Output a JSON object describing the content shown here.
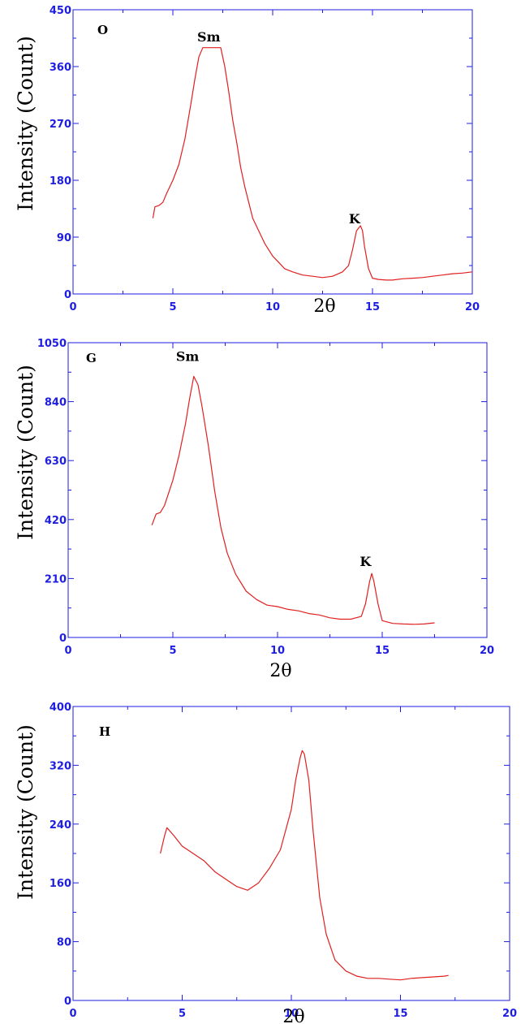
{
  "chart_data": [
    {
      "type": "line",
      "panel_label": "O",
      "xlabel": "2θ",
      "ylabel": "Intensity (Count)",
      "xlim": [
        0,
        20
      ],
      "ylim": [
        0,
        450
      ],
      "x_ticks": [
        "0",
        "5",
        "10",
        "15",
        "20"
      ],
      "y_ticks": [
        "0",
        "90",
        "180",
        "270",
        "360",
        "450"
      ],
      "colors": {
        "axis": "#1e1ee0",
        "series": "#e02020"
      },
      "series": [
        {
          "x": [
            4.0,
            4.1,
            4.3,
            4.5,
            4.7,
            5.0,
            5.3,
            5.6,
            5.9,
            6.1,
            6.3,
            6.5,
            7.0,
            7.4,
            7.6,
            7.8,
            8.0,
            8.2,
            8.4,
            8.6,
            8.8,
            9.0,
            9.3,
            9.6,
            10.0,
            10.3,
            10.6,
            11.0,
            11.5,
            12.0,
            12.5,
            13.0,
            13.5,
            13.8,
            14.0,
            14.2,
            14.4,
            14.5,
            14.6,
            14.8,
            15.0,
            15.3,
            15.7,
            16.0,
            16.5,
            17.0,
            17.5,
            18.0,
            18.5,
            19.0,
            19.5,
            20.0
          ],
          "y": [
            120,
            138,
            140,
            145,
            160,
            180,
            205,
            245,
            300,
            340,
            375,
            390,
            390,
            390,
            360,
            320,
            275,
            240,
            200,
            170,
            145,
            120,
            100,
            80,
            60,
            50,
            40,
            35,
            30,
            28,
            26,
            28,
            35,
            45,
            70,
            100,
            108,
            100,
            75,
            40,
            25,
            23,
            22,
            22,
            24,
            25,
            26,
            28,
            30,
            32,
            33,
            35
          ]
        }
      ],
      "annotations": [
        {
          "text": "Sm",
          "x": 6.8,
          "y": 400
        },
        {
          "text": "K",
          "x": 14.1,
          "y": 112
        }
      ]
    },
    {
      "type": "line",
      "panel_label": "G",
      "xlabel": "2θ",
      "ylabel": "Intensity (Count)",
      "xlim": [
        0,
        20
      ],
      "ylim": [
        0,
        1050
      ],
      "x_ticks": [
        "0",
        "5",
        "10",
        "15",
        "20"
      ],
      "y_ticks": [
        "0",
        "210",
        "420",
        "630",
        "840",
        "1050"
      ],
      "colors": {
        "axis": "#1e1ee0",
        "series": "#e02020"
      },
      "series": [
        {
          "x": [
            4.0,
            4.2,
            4.4,
            4.6,
            5.0,
            5.3,
            5.6,
            5.8,
            6.0,
            6.2,
            6.4,
            6.7,
            7.0,
            7.3,
            7.6,
            8.0,
            8.5,
            9.0,
            9.5,
            10.0,
            10.5,
            11.0,
            11.5,
            12.0,
            12.5,
            13.0,
            13.5,
            14.0,
            14.2,
            14.4,
            14.5,
            14.6,
            14.8,
            15.0,
            15.5,
            16.0,
            16.5,
            17.0,
            17.5
          ],
          "y": [
            400,
            440,
            445,
            470,
            560,
            650,
            760,
            850,
            930,
            900,
            820,
            680,
            520,
            390,
            300,
            225,
            165,
            135,
            115,
            110,
            100,
            95,
            85,
            80,
            70,
            65,
            65,
            75,
            120,
            200,
            228,
            200,
            120,
            60,
            50,
            48,
            47,
            48,
            52
          ]
        }
      ],
      "annotations": [
        {
          "text": "Sm",
          "x": 5.7,
          "y": 985
        },
        {
          "text": "K",
          "x": 14.2,
          "y": 255
        }
      ]
    },
    {
      "type": "line",
      "panel_label": "H",
      "xlabel": "2θ",
      "ylabel": "Intensity (Count)",
      "xlim": [
        0,
        20
      ],
      "ylim": [
        0,
        400
      ],
      "x_ticks": [
        "0",
        "5",
        "10",
        "15",
        "20"
      ],
      "y_ticks": [
        "0",
        "80",
        "160",
        "240",
        "320",
        "400"
      ],
      "colors": {
        "axis": "#1e1ee0",
        "series": "#e02020"
      },
      "series": [
        {
          "x": [
            4.0,
            4.2,
            4.3,
            4.6,
            5.0,
            5.5,
            6.0,
            6.5,
            7.0,
            7.5,
            8.0,
            8.5,
            9.0,
            9.5,
            10.0,
            10.2,
            10.4,
            10.5,
            10.6,
            10.8,
            11.0,
            11.3,
            11.6,
            12.0,
            12.5,
            13.0,
            13.5,
            14.0,
            14.5,
            15.0,
            15.5,
            16.0,
            16.5,
            17.0,
            17.2
          ],
          "y": [
            200,
            225,
            235,
            225,
            210,
            200,
            190,
            175,
            165,
            155,
            150,
            160,
            180,
            205,
            260,
            300,
            330,
            340,
            335,
            300,
            230,
            140,
            90,
            55,
            40,
            33,
            30,
            30,
            29,
            28,
            30,
            31,
            32,
            33,
            34
          ]
        }
      ],
      "annotations": []
    }
  ]
}
